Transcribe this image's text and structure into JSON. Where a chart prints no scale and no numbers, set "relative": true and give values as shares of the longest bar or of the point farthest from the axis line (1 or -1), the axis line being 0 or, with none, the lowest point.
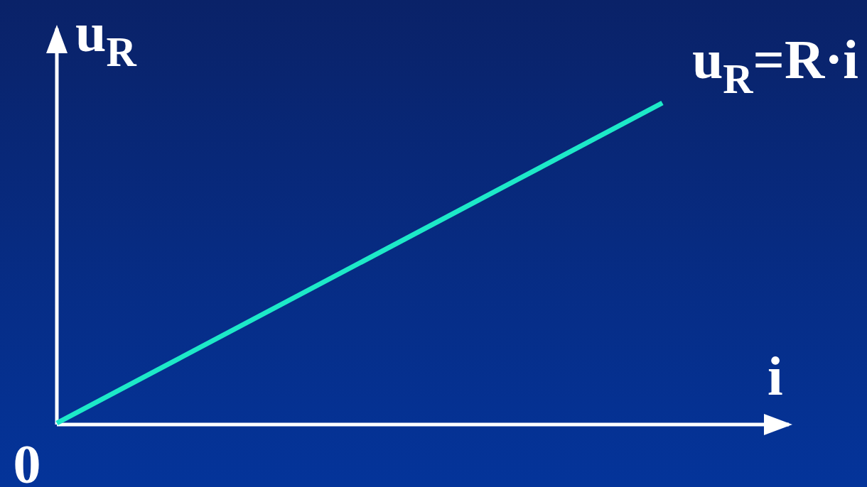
{
  "chart_data": {
    "type": "line",
    "relative": true,
    "categories": [
      null,
      null
    ],
    "xlabel": "i",
    "ylabel": "u$_{R}$",
    "series": [
      {
        "color": "#1de9c8",
        "values": [
          0,
          1
        ]
      }
    ],
    "annotations": [
      "u$_{R}$=R·i",
      "0"
    ],
    "line_style": "solid"
  }
}
